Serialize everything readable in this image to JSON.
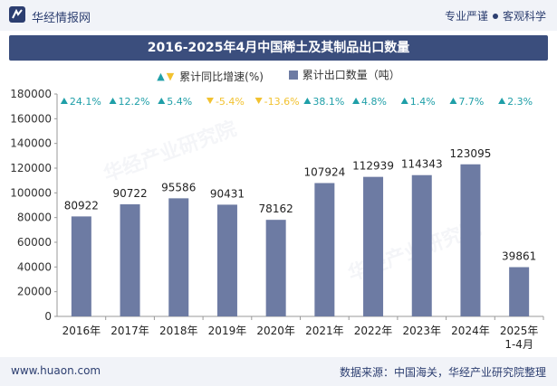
{
  "header": {
    "site_name": "华经情报网",
    "tag_left": "专业严谨",
    "tag_right": "客观科学"
  },
  "footer": {
    "url": "www.huaon.com",
    "source": "数据来源：中国海关，华经产业研究院整理"
  },
  "watermark": "华经产业研究院",
  "colors": {
    "bar": "#6d7ba3",
    "up": "#1f9fa8",
    "down": "#f2c230",
    "title_bg": "#3b4e7d"
  },
  "chart_data": {
    "type": "bar",
    "title": "2016-2025年4月中国稀土及其制品出口数量",
    "legend": {
      "growth": "累计同比增速(%)",
      "volume": "累计出口数量（吨）"
    },
    "categories": [
      "2016年",
      "2017年",
      "2018年",
      "2019年",
      "2020年",
      "2021年",
      "2022年",
      "2023年",
      "2024年",
      "2025年\n1-4月"
    ],
    "series": [
      {
        "name": "累计出口数量（吨）",
        "values": [
          80922,
          90722,
          95586,
          90431,
          78162,
          107924,
          112939,
          114343,
          123095,
          39861
        ]
      }
    ],
    "growth": [
      24.1,
      12.2,
      5.4,
      -5.4,
      -13.6,
      38.1,
      4.8,
      1.4,
      7.7,
      2.3
    ],
    "growth_labels": [
      "24.1%",
      "12.2%",
      "5.4%",
      "-5.4%",
      "-13.6%",
      "38.1%",
      "4.8%",
      "1.4%",
      "7.7%",
      "2.3%"
    ],
    "ylim": [
      0,
      180000
    ],
    "yticks": [
      0,
      20000,
      40000,
      60000,
      80000,
      100000,
      120000,
      140000,
      160000,
      180000
    ],
    "xlabel": "",
    "ylabel": ""
  }
}
